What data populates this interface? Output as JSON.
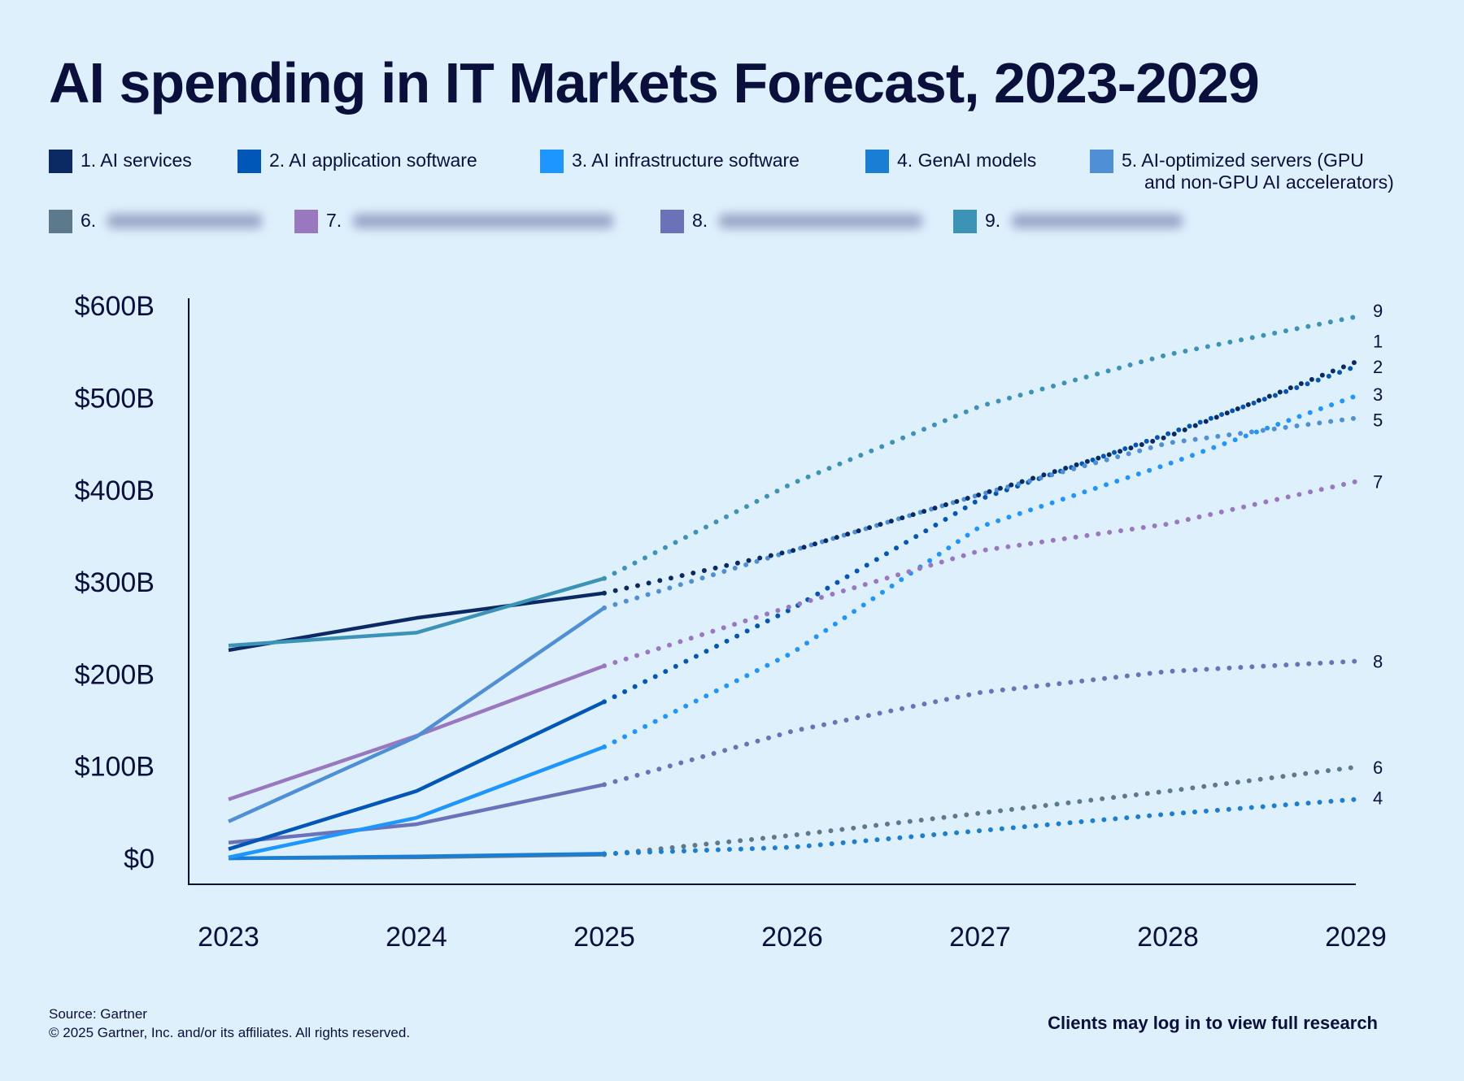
{
  "title": "AI spending in IT Markets Forecast, 2023-2029",
  "footer": {
    "source": "Source: Gartner",
    "copyright": "© 2025 Gartner, Inc. and/or its affiliates. All rights reserved.",
    "cta": "Clients may log in to view full research"
  },
  "chart_data": {
    "type": "line",
    "title": "AI spending in IT Markets Forecast, 2023-2029",
    "x": [
      2023,
      2024,
      2025,
      2026,
      2027,
      2028,
      2029
    ],
    "x_tick_labels": [
      "2023",
      "2024",
      "2025",
      "2026",
      "2027",
      "2028",
      "2029"
    ],
    "y_tick_labels": [
      "$0",
      "$100B",
      "$200B",
      "$300B",
      "$400B",
      "$500B",
      "$600B"
    ],
    "y_ticks": [
      0,
      100,
      200,
      300,
      400,
      500,
      600
    ],
    "ylim": [
      0,
      600
    ],
    "y_unit": "$B",
    "grid": false,
    "legend_placement": "top",
    "actual_through": 2025,
    "forecast_style": "dotted",
    "series": [
      {
        "id": "1",
        "name": "1. AI services",
        "color": "#0b2a63",
        "values": [
          226,
          261,
          288,
          334,
          395,
          458,
          539
        ]
      },
      {
        "id": "2",
        "name": "2. AI application software",
        "color": "#0057b8",
        "values": [
          10,
          73,
          170,
          271,
          390,
          461,
          534
        ]
      },
      {
        "id": "3",
        "name": "3. AI infrastructure software",
        "color": "#1e96ff",
        "values": [
          1,
          44,
          121,
          223,
          360,
          428,
          502
        ]
      },
      {
        "id": "4",
        "name": "4. GenAI models",
        "color": "#1a7fd4",
        "values": [
          0,
          2,
          5,
          12,
          30,
          48,
          64
        ]
      },
      {
        "id": "5",
        "name": "5. AI-optimized servers (GPU and non-GPU AI accelerators)",
        "name_line1": "5. AI-optimized servers (GPU",
        "name_line2": "and non-GPU AI accelerators)",
        "color": "#4e8fd6",
        "values": [
          40,
          132,
          272,
          334,
          395,
          451,
          478
        ]
      },
      {
        "id": "6",
        "name": "6.",
        "color": "#5c7a8c",
        "values": [
          0,
          1,
          4,
          25,
          49,
          73,
          99
        ]
      },
      {
        "id": "7",
        "name": "7.",
        "color": "#9a78c0",
        "values": [
          64,
          133,
          209,
          274,
          334,
          363,
          409
        ]
      },
      {
        "id": "8",
        "name": "8.",
        "color": "#6b72b8",
        "values": [
          17,
          37,
          80,
          138,
          180,
          203,
          214
        ]
      },
      {
        "id": "9",
        "name": "9.",
        "color": "#3b93b5",
        "values": [
          231,
          245,
          304,
          407,
          491,
          547,
          588
        ]
      }
    ]
  }
}
